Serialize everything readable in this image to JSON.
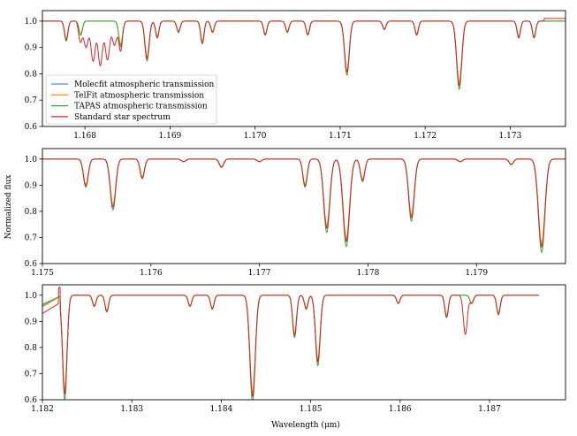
{
  "figure": {
    "ylabel": "Normalized flux",
    "xlabel": "Wavelength (μm)"
  },
  "colors": {
    "molecfit": "#4c8fd0",
    "telfit": "#ff9a1f",
    "tapas": "#3aa33a",
    "star": "#d62728"
  },
  "legend": {
    "placement": "lower-left",
    "entries": [
      {
        "key": "molecfit",
        "label": "Molecfit atmospheric transmission"
      },
      {
        "key": "telfit",
        "label": "TelFit atmospheric transmission"
      },
      {
        "key": "tapas",
        "label": "TAPAS atmospheric transmission"
      },
      {
        "key": "star",
        "label": "Standard star spectrum"
      }
    ]
  },
  "chart_data": [
    {
      "type": "line",
      "xlim": [
        1.1675,
        1.17365
      ],
      "ylim": [
        0.6,
        1.04
      ],
      "xticks": [
        "1.168",
        "1.169",
        "1.170",
        "1.171",
        "1.172",
        "1.173"
      ],
      "xtick_values": [
        1.168,
        1.169,
        1.17,
        1.171,
        1.172,
        1.173
      ],
      "yticks": [
        "0.6",
        "0.7",
        "0.8",
        "0.9",
        "1.0"
      ],
      "ytick_values": [
        0.6,
        0.7,
        0.8,
        0.9,
        1.0
      ],
      "lines": [
        {
          "center": 1.16778,
          "depth": 0.07,
          "width": 2e-05
        },
        {
          "center": 1.16795,
          "depth": 0.05,
          "width": 2e-05
        },
        {
          "center": 1.16842,
          "depth": 0.09,
          "width": 2.2e-05
        },
        {
          "center": 1.16873,
          "depth": 0.14,
          "width": 2.5e-05
        },
        {
          "center": 1.16885,
          "depth": 0.06,
          "width": 2e-05
        },
        {
          "center": 1.1691,
          "depth": 0.04,
          "width": 2e-05
        },
        {
          "center": 1.16938,
          "depth": 0.08,
          "width": 2e-05
        },
        {
          "center": 1.1695,
          "depth": 0.04,
          "width": 2e-05
        },
        {
          "center": 1.17012,
          "depth": 0.05,
          "width": 2e-05
        },
        {
          "center": 1.17038,
          "depth": 0.04,
          "width": 2e-05
        },
        {
          "center": 1.17062,
          "depth": 0.05,
          "width": 2e-05
        },
        {
          "center": 1.17108,
          "depth": 0.19,
          "width": 2.8e-05
        },
        {
          "center": 1.17152,
          "depth": 0.03,
          "width": 2e-05
        },
        {
          "center": 1.1719,
          "depth": 0.05,
          "width": 2e-05
        },
        {
          "center": 1.1724,
          "depth": 0.24,
          "width": 3e-05
        },
        {
          "center": 1.1731,
          "depth": 0.06,
          "width": 2e-05
        },
        {
          "center": 1.17328,
          "depth": 0.06,
          "width": 2e-05
        }
      ],
      "stellar_feature": {
        "start": 1.1679,
        "end": 1.16845,
        "depth": 0.17
      },
      "tail": {
        "x": 1.1734,
        "y": 1.01
      }
    },
    {
      "type": "line",
      "xlim": [
        1.175,
        1.17982
      ],
      "ylim": [
        0.6,
        1.04
      ],
      "xticks": [
        "1.175",
        "1.176",
        "1.177",
        "1.178",
        "1.179"
      ],
      "xtick_values": [
        1.175,
        1.176,
        1.177,
        1.178,
        1.179
      ],
      "yticks": [
        "0.6",
        "0.7",
        "0.8",
        "0.9",
        "1.0"
      ],
      "ytick_values": [
        0.6,
        0.7,
        0.8,
        0.9,
        1.0
      ],
      "lines": [
        {
          "center": 1.1754,
          "depth": 0.1,
          "width": 2.2e-05
        },
        {
          "center": 1.17565,
          "depth": 0.18,
          "width": 2.5e-05
        },
        {
          "center": 1.17592,
          "depth": 0.07,
          "width": 2e-05
        },
        {
          "center": 1.1763,
          "depth": 0.01,
          "width": 2e-05
        },
        {
          "center": 1.17665,
          "depth": 0.03,
          "width": 2e-05
        },
        {
          "center": 1.177,
          "depth": 0.01,
          "width": 2e-05
        },
        {
          "center": 1.17742,
          "depth": 0.1,
          "width": 2e-05
        },
        {
          "center": 1.17762,
          "depth": 0.26,
          "width": 2.8e-05
        },
        {
          "center": 1.1778,
          "depth": 0.31,
          "width": 3e-05
        },
        {
          "center": 1.17795,
          "depth": 0.08,
          "width": 2e-05
        },
        {
          "center": 1.1784,
          "depth": 0.22,
          "width": 2.6e-05
        },
        {
          "center": 1.17885,
          "depth": 0.01,
          "width": 2e-05
        },
        {
          "center": 1.17932,
          "depth": 0.02,
          "width": 2e-05
        },
        {
          "center": 1.1796,
          "depth": 0.33,
          "width": 3e-05
        }
      ]
    },
    {
      "type": "line",
      "xlim": [
        1.182,
        1.18785
      ],
      "ylim": [
        0.6,
        1.04
      ],
      "xticks": [
        "1.182",
        "1.183",
        "1.184",
        "1.185",
        "1.186",
        "1.187"
      ],
      "xtick_values": [
        1.182,
        1.183,
        1.184,
        1.185,
        1.186,
        1.187
      ],
      "yticks": [
        "0.6",
        "0.7",
        "0.8",
        "0.9",
        "1.0"
      ],
      "ytick_values": [
        0.6,
        0.7,
        0.8,
        0.9,
        1.0
      ],
      "lines": [
        {
          "center": 1.18225,
          "depth": 0.37,
          "width": 2.5e-05
        },
        {
          "center": 1.18258,
          "depth": 0.04,
          "width": 2e-05
        },
        {
          "center": 1.18272,
          "depth": 0.06,
          "width": 2e-05
        },
        {
          "center": 1.18365,
          "depth": 0.04,
          "width": 2e-05
        },
        {
          "center": 1.1839,
          "depth": 0.05,
          "width": 2e-05
        },
        {
          "center": 1.18435,
          "depth": 0.38,
          "width": 3e-05
        },
        {
          "center": 1.18482,
          "depth": 0.15,
          "width": 2.2e-05
        },
        {
          "center": 1.18495,
          "depth": 0.05,
          "width": 2e-05
        },
        {
          "center": 1.18508,
          "depth": 0.25,
          "width": 2.6e-05
        },
        {
          "center": 1.18598,
          "depth": 0.03,
          "width": 2e-05
        },
        {
          "center": 1.18652,
          "depth": 0.08,
          "width": 2e-05
        },
        {
          "center": 1.1868,
          "depth": 0.03,
          "width": 2e-05
        },
        {
          "center": 1.1871,
          "depth": 0.07,
          "width": 2e-05
        }
      ],
      "stellar_line": {
        "center": 1.18673,
        "depth": 0.15,
        "width": 2.2e-05
      },
      "start_values": {
        "molecfit": 0.96,
        "telfit": 0.955,
        "tapas": 0.965,
        "star": 0.93
      },
      "data_end": 1.18755
    }
  ]
}
